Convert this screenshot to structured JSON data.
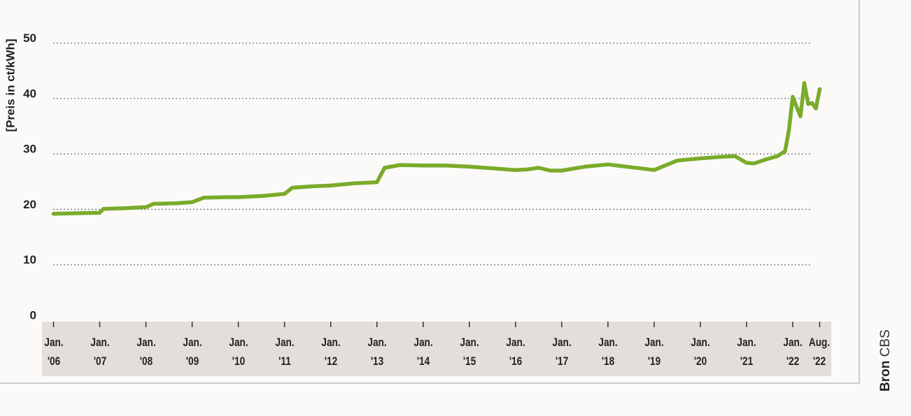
{
  "chart_data": {
    "type": "line",
    "y_label": "[Preis in ct/kWh]",
    "source_label": "Bron",
    "source": "CBS",
    "x": [
      "2006-01",
      "2006-07",
      "2007-01",
      "2007-02",
      "2007-07",
      "2008-01",
      "2008-03",
      "2008-09",
      "2009-01",
      "2009-04",
      "2009-10",
      "2010-01",
      "2010-07",
      "2011-01",
      "2011-03",
      "2011-09",
      "2012-01",
      "2012-07",
      "2013-01",
      "2013-03",
      "2013-07",
      "2014-01",
      "2014-07",
      "2015-01",
      "2015-07",
      "2016-01",
      "2016-04",
      "2016-07",
      "2016-10",
      "2017-01",
      "2017-07",
      "2018-01",
      "2018-07",
      "2019-01",
      "2019-07",
      "2020-01",
      "2020-07",
      "2020-10",
      "2021-01",
      "2021-03",
      "2021-06",
      "2021-09",
      "2021-11",
      "2021-12",
      "2022-01",
      "2022-02",
      "2022-03",
      "2022-04",
      "2022-05",
      "2022-06",
      "2022-07",
      "2022-08"
    ],
    "series": [
      {
        "color": "#7aab2a",
        "values": [
          19.2,
          19.3,
          19.4,
          20.1,
          20.2,
          20.4,
          21.0,
          21.1,
          21.3,
          22.1,
          22.2,
          22.2,
          22.4,
          22.8,
          23.9,
          24.2,
          24.3,
          24.7,
          24.9,
          27.5,
          28.0,
          27.9,
          27.9,
          27.7,
          27.4,
          27.1,
          27.2,
          27.5,
          27.0,
          27.0,
          27.7,
          28.1,
          27.6,
          27.1,
          28.8,
          29.2,
          29.5,
          29.6,
          28.4,
          28.3,
          29.0,
          29.6,
          30.5,
          34.3,
          40.3,
          38.5,
          36.8,
          42.8,
          39.0,
          39.2,
          38.2,
          41.7
        ]
      }
    ],
    "xlim": [
      "2005-10",
      "2022-11"
    ],
    "xticks": [
      {
        "value": "2006-01",
        "label": "Jan. '06"
      },
      {
        "value": "2007-01",
        "label": "Jan. '07"
      },
      {
        "value": "2008-01",
        "label": "Jan. '08"
      },
      {
        "value": "2009-01",
        "label": "Jan. '09"
      },
      {
        "value": "2010-01",
        "label": "Jan. '10"
      },
      {
        "value": "2011-01",
        "label": "Jan. '11"
      },
      {
        "value": "2012-01",
        "label": "Jan. '12"
      },
      {
        "value": "2013-01",
        "label": "Jan. '13"
      },
      {
        "value": "2014-01",
        "label": "Jan. '14"
      },
      {
        "value": "2015-01",
        "label": "Jan. '15"
      },
      {
        "value": "2016-01",
        "label": "Jan. '16"
      },
      {
        "value": "2017-01",
        "label": "Jan. '17"
      },
      {
        "value": "2018-01",
        "label": "Jan. '18"
      },
      {
        "value": "2019-01",
        "label": "Jan. '19"
      },
      {
        "value": "2020-01",
        "label": "Jan. '20"
      },
      {
        "value": "2021-01",
        "label": "Jan. '21"
      },
      {
        "value": "2022-01",
        "label": "Jan. '22"
      },
      {
        "value": "2022-08",
        "label": "Aug. '22"
      }
    ],
    "ylim": [
      0,
      55
    ],
    "yticks": [
      0,
      10,
      20,
      30,
      40,
      50
    ],
    "grid": true
  }
}
